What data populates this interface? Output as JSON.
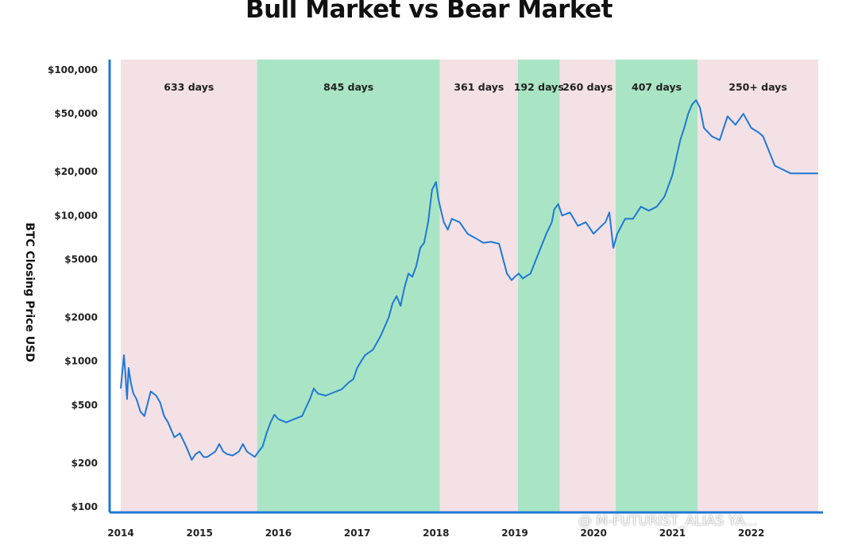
{
  "chart_data": {
    "type": "line",
    "title": "Bull Market vs Bear Market",
    "ylabel": "BTC Closing Price USD",
    "xlabel": "",
    "y_scale": "log",
    "ylim": [
      100,
      100000
    ],
    "xlim": [
      2014.0,
      2022.85
    ],
    "grid": false,
    "y_ticks": [
      {
        "value": 100000,
        "label": "$100,000"
      },
      {
        "value": 50000,
        "label": "$50,000"
      },
      {
        "value": 20000,
        "label": "$20,000"
      },
      {
        "value": 10000,
        "label": "$10,000"
      },
      {
        "value": 5000,
        "label": "$5000"
      },
      {
        "value": 2000,
        "label": "$2000"
      },
      {
        "value": 1000,
        "label": "$1000"
      },
      {
        "value": 500,
        "label": "$500"
      },
      {
        "value": 200,
        "label": "$200"
      },
      {
        "value": 100,
        "label": "$100"
      }
    ],
    "x_ticks": [
      {
        "value": 2014.0,
        "label": "2014"
      },
      {
        "value": 2015.0,
        "label": "2015"
      },
      {
        "value": 2016.0,
        "label": "2016"
      },
      {
        "value": 2017.0,
        "label": "2017"
      },
      {
        "value": 2018.0,
        "label": "2018"
      },
      {
        "value": 2019.0,
        "label": "2019"
      },
      {
        "value": 2020.0,
        "label": "2020"
      },
      {
        "value": 2021.0,
        "label": "2021"
      },
      {
        "value": 2022.0,
        "label": "2022"
      }
    ],
    "regions": [
      {
        "kind": "bear",
        "start": 2014.0,
        "end": 2015.73,
        "label": "633 days"
      },
      {
        "kind": "bull",
        "start": 2015.73,
        "end": 2018.05,
        "label": "845 days"
      },
      {
        "kind": "bear",
        "start": 2018.05,
        "end": 2019.04,
        "label": "361 days"
      },
      {
        "kind": "bull",
        "start": 2019.04,
        "end": 2019.57,
        "label": "192 days"
      },
      {
        "kind": "bear",
        "start": 2019.57,
        "end": 2020.28,
        "label": "260 days"
      },
      {
        "kind": "bull",
        "start": 2020.28,
        "end": 2021.32,
        "label": "407 days"
      },
      {
        "kind": "bear",
        "start": 2021.32,
        "end": 2022.85,
        "label": "250+ days"
      }
    ],
    "series": [
      {
        "x": [
          2014.0,
          2014.04,
          2014.06,
          2014.08,
          2014.1,
          2014.13,
          2014.16,
          2014.2,
          2014.25,
          2014.3,
          2014.38,
          2014.45,
          2014.5,
          2014.55,
          2014.6,
          2014.68,
          2014.75,
          2014.83,
          2014.9,
          2014.95,
          2015.0,
          2015.05,
          2015.1,
          2015.15,
          2015.2,
          2015.25,
          2015.3,
          2015.35,
          2015.42,
          2015.5,
          2015.55,
          2015.6,
          2015.65,
          2015.7,
          2015.75,
          2015.8,
          2015.85,
          2015.9,
          2015.95,
          2016.0,
          2016.1,
          2016.2,
          2016.3,
          2016.4,
          2016.45,
          2016.5,
          2016.6,
          2016.7,
          2016.8,
          2016.9,
          2016.95,
          2017.0,
          2017.05,
          2017.1,
          2017.2,
          2017.3,
          2017.4,
          2017.45,
          2017.5,
          2017.55,
          2017.6,
          2017.65,
          2017.7,
          2017.75,
          2017.8,
          2017.85,
          2017.9,
          2017.95,
          2018.0,
          2018.03,
          2018.06,
          2018.1,
          2018.15,
          2018.2,
          2018.3,
          2018.4,
          2018.5,
          2018.6,
          2018.7,
          2018.8,
          2018.9,
          2018.96,
          2019.0,
          2019.05,
          2019.1,
          2019.2,
          2019.3,
          2019.4,
          2019.47,
          2019.5,
          2019.55,
          2019.6,
          2019.7,
          2019.8,
          2019.9,
          2020.0,
          2020.1,
          2020.15,
          2020.2,
          2020.25,
          2020.3,
          2020.4,
          2020.5,
          2020.6,
          2020.7,
          2020.8,
          2020.9,
          2021.0,
          2021.1,
          2021.15,
          2021.2,
          2021.25,
          2021.3,
          2021.35,
          2021.4,
          2021.5,
          2021.6,
          2021.7,
          2021.8,
          2021.9,
          2022.0,
          2022.1,
          2022.15,
          2022.2,
          2022.3,
          2022.5,
          2022.85
        ],
        "y": [
          650,
          1100,
          800,
          550,
          900,
          700,
          600,
          550,
          450,
          420,
          620,
          580,
          520,
          420,
          380,
          300,
          320,
          260,
          210,
          230,
          240,
          220,
          220,
          230,
          240,
          270,
          240,
          230,
          225,
          240,
          270,
          240,
          230,
          220,
          240,
          260,
          320,
          380,
          430,
          400,
          380,
          400,
          420,
          550,
          650,
          600,
          580,
          610,
          640,
          720,
          750,
          900,
          1000,
          1100,
          1200,
          1500,
          2000,
          2500,
          2800,
          2400,
          3200,
          4000,
          3800,
          4500,
          6000,
          6500,
          9000,
          15000,
          17000,
          13000,
          11000,
          9000,
          8000,
          9500,
          9000,
          7500,
          7000,
          6500,
          6600,
          6400,
          4000,
          3600,
          3800,
          4000,
          3700,
          4000,
          5500,
          7500,
          9000,
          11000,
          12000,
          10000,
          10500,
          8500,
          9000,
          7500,
          8500,
          9000,
          10500,
          6000,
          7500,
          9500,
          9500,
          11500,
          10800,
          11500,
          13500,
          19000,
          33000,
          40000,
          50000,
          58000,
          62000,
          55000,
          40000,
          35000,
          33000,
          48000,
          42000,
          50000,
          40000,
          37000,
          35000,
          30000,
          22000,
          19500,
          19500
        ]
      }
    ]
  },
  "watermark": "@ M-FUTURIST_ALIAS YA..."
}
